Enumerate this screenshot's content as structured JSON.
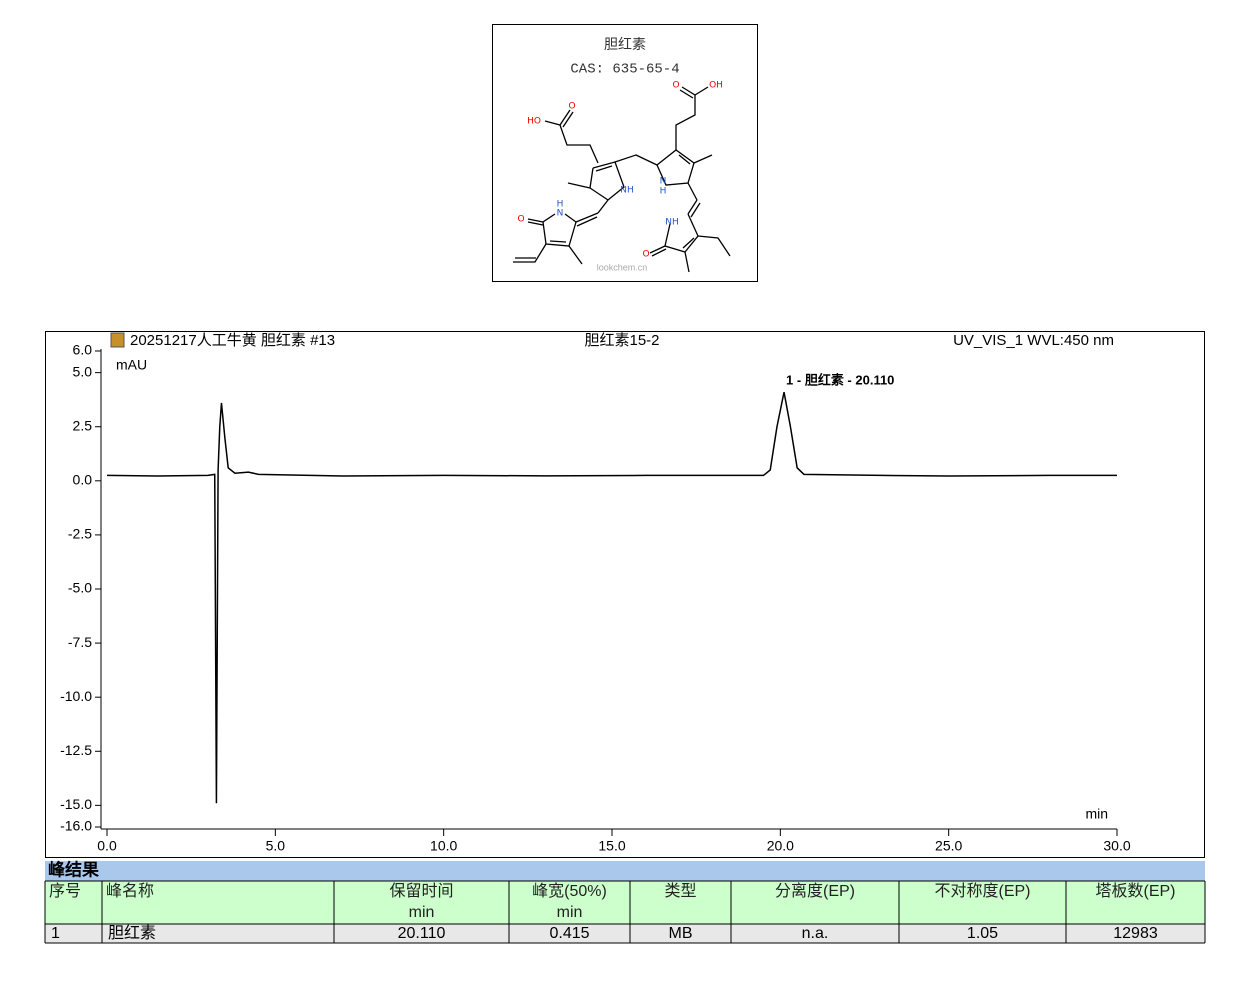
{
  "structure": {
    "title": "胆红素",
    "cas": "CAS: 635-65-4",
    "atoms": [
      {
        "label": "O"
      },
      {
        "label": "HO"
      },
      {
        "label": "O"
      },
      {
        "label": "OH"
      },
      {
        "label": "NH"
      },
      {
        "label": "N"
      },
      {
        "label": "H"
      },
      {
        "label": "H"
      },
      {
        "label": "N"
      },
      {
        "label": "O"
      },
      {
        "label": "NH"
      },
      {
        "label": "O"
      }
    ],
    "watermark": "lookchem.cn"
  },
  "chart_data": {
    "type": "line",
    "title": "20251217人工牛黄 胆红素 #13",
    "subtitle": "胆红素15-2",
    "detector": "UV_VIS_1 WVL:450 nm",
    "y_label": "mAU",
    "x_label": "min",
    "annotation": "1 -  胆红素 - 20.110",
    "annotation_x": 20.11,
    "color": "#000000",
    "x": [
      0,
      1.5,
      3.0,
      3.2,
      3.25,
      3.3,
      3.35,
      3.4,
      3.5,
      3.6,
      3.8,
      4.2,
      4.5,
      7,
      10,
      13,
      16,
      19.5,
      19.7,
      19.9,
      20.11,
      20.3,
      20.5,
      20.7,
      23,
      25,
      28,
      30
    ],
    "values": [
      0.25,
      0.22,
      0.25,
      0.3,
      -14.9,
      0.5,
      2.5,
      3.6,
      2.0,
      0.6,
      0.35,
      0.4,
      0.3,
      0.22,
      0.25,
      0.23,
      0.25,
      0.25,
      0.5,
      2.5,
      4.1,
      2.5,
      0.6,
      0.3,
      0.25,
      0.22,
      0.25,
      0.25
    ],
    "xlim": [
      0,
      30
    ],
    "xticks": [
      {
        "value": 0,
        "label": "0.0"
      },
      {
        "value": 5,
        "label": "5.0"
      },
      {
        "value": 10,
        "label": "10.0"
      },
      {
        "value": 15,
        "label": "15.0"
      },
      {
        "value": 20,
        "label": "20.0"
      },
      {
        "value": 25,
        "label": "25.0"
      },
      {
        "value": 30,
        "label": "30.0"
      }
    ],
    "ylim": [
      -16,
      6
    ],
    "yticks": [
      {
        "value": 6,
        "label": "6.0"
      },
      {
        "value": 5,
        "label": "5.0"
      },
      {
        "value": 2.5,
        "label": "2.5"
      },
      {
        "value": 0,
        "label": "0.0"
      },
      {
        "value": -2.5,
        "label": "-2.5"
      },
      {
        "value": -5,
        "label": "-5.0"
      },
      {
        "value": -7.5,
        "label": "-7.5"
      },
      {
        "value": -10,
        "label": "-10.0"
      },
      {
        "value": -12.5,
        "label": "-12.5"
      },
      {
        "value": -15,
        "label": "-15.0"
      },
      {
        "value": -16,
        "label": "-16.0"
      }
    ]
  },
  "table": {
    "title": "峰结果",
    "header": [
      [
        "序号"
      ],
      [
        "峰名称"
      ],
      [
        "保留时间",
        "min"
      ],
      [
        "峰宽(50%)",
        "min"
      ],
      [
        "类型"
      ],
      [
        "分离度(EP)"
      ],
      [
        "不对称度(EP)"
      ],
      [
        "塔板数(EP)"
      ]
    ],
    "rows": [
      [
        "1",
        "胆红素",
        "20.110",
        "0.415",
        "MB",
        "n.a.",
        "1.05",
        "12983"
      ]
    ]
  }
}
